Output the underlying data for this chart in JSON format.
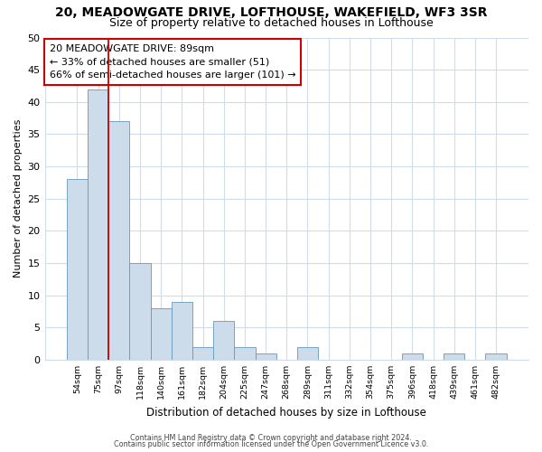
{
  "title": "20, MEADOWGATE DRIVE, LOFTHOUSE, WAKEFIELD, WF3 3SR",
  "subtitle": "Size of property relative to detached houses in Lofthouse",
  "xlabel": "Distribution of detached houses by size in Lofthouse",
  "ylabel": "Number of detached properties",
  "bar_values": [
    28,
    42,
    37,
    15,
    8,
    9,
    2,
    6,
    2,
    1,
    0,
    2,
    0,
    0,
    0,
    0,
    1,
    0,
    1,
    0,
    1
  ],
  "bin_labels": [
    "54sqm",
    "75sqm",
    "97sqm",
    "118sqm",
    "140sqm",
    "161sqm",
    "182sqm",
    "204sqm",
    "225sqm",
    "247sqm",
    "268sqm",
    "289sqm",
    "311sqm",
    "332sqm",
    "354sqm",
    "375sqm",
    "396sqm",
    "418sqm",
    "439sqm",
    "461sqm",
    "482sqm"
  ],
  "bar_color": "#ccdcea",
  "bar_edge_color": "#6699bb",
  "red_line_x": 1.5,
  "annotation_line1": "20 MEADOWGATE DRIVE: 89sqm",
  "annotation_line2": "← 33% of detached houses are smaller (51)",
  "annotation_line3": "66% of semi-detached houses are larger (101) →",
  "annotation_box_color": "white",
  "annotation_box_edge": "#cc0000",
  "ylim": [
    0,
    50
  ],
  "yticks": [
    0,
    5,
    10,
    15,
    20,
    25,
    30,
    35,
    40,
    45,
    50
  ],
  "footer1": "Contains HM Land Registry data © Crown copyright and database right 2024.",
  "footer2": "Contains public sector information licensed under the Open Government Licence v3.0.",
  "background_color": "#ffffff",
  "grid_color": "#d0dce8",
  "title_fontsize": 10,
  "subtitle_fontsize": 9
}
